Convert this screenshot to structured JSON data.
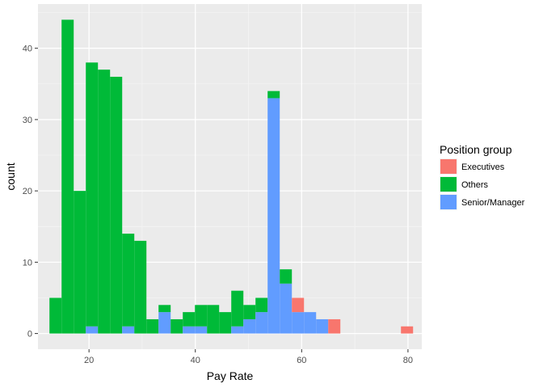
{
  "chart_data": {
    "type": "bar",
    "stacked": true,
    "xlabel": "Pay Rate",
    "ylabel": "count",
    "xlim": [
      10.4,
      82.6
    ],
    "ylim": [
      -2.2,
      46.2
    ],
    "x_ticks": [
      20,
      40,
      60,
      80
    ],
    "y_ticks": [
      0,
      10,
      20,
      30,
      40
    ],
    "x_tick_labels": [
      "20",
      "40",
      "60",
      "80"
    ],
    "y_tick_labels": [
      "0",
      "10",
      "20",
      "30",
      "40"
    ],
    "grid": true,
    "bin_centers": [
      13.7,
      15.98,
      18.26,
      20.54,
      22.82,
      25.1,
      27.38,
      29.66,
      31.94,
      34.22,
      36.5,
      38.78,
      41.06,
      43.34,
      45.62,
      47.9,
      50.18,
      52.46,
      54.74,
      57.02,
      59.3,
      61.58,
      63.86,
      66.14,
      68.42,
      70.7,
      72.98,
      75.26,
      77.54,
      79.82
    ],
    "bin_width": 2.28,
    "legend": {
      "title": "Position group",
      "position": "right"
    },
    "series": [
      {
        "name": "Senior/Manager",
        "color": "#619CFF",
        "values": [
          0,
          0,
          0,
          1,
          0,
          0,
          1,
          0,
          0,
          3,
          0,
          1,
          1,
          0,
          0,
          1,
          2,
          3,
          33,
          7,
          3,
          3,
          2,
          0,
          0,
          0,
          0,
          0,
          0,
          0
        ]
      },
      {
        "name": "Others",
        "color": "#00BA38",
        "values": [
          5,
          44,
          20,
          37,
          37,
          36,
          13,
          13,
          2,
          1,
          2,
          2,
          3,
          4,
          3,
          5,
          2,
          2,
          1,
          2,
          0,
          0,
          0,
          0,
          0,
          0,
          0,
          0,
          0,
          0
        ]
      },
      {
        "name": "Executives",
        "color": "#F8766D",
        "values": [
          0,
          0,
          0,
          0,
          0,
          0,
          0,
          0,
          0,
          0,
          0,
          0,
          0,
          0,
          0,
          0,
          0,
          0,
          0,
          0,
          2,
          0,
          0,
          2,
          0,
          0,
          0,
          0,
          0,
          1
        ]
      }
    ],
    "legend_order": [
      "Executives",
      "Others",
      "Senior/Manager"
    ]
  }
}
